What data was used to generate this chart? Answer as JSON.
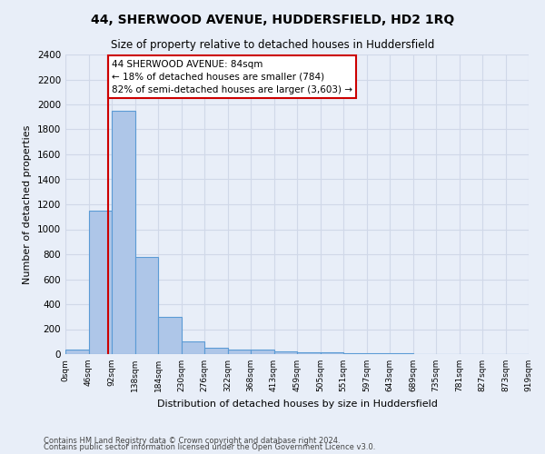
{
  "title": "44, SHERWOOD AVENUE, HUDDERSFIELD, HD2 1RQ",
  "subtitle": "Size of property relative to detached houses in Huddersfield",
  "xlabel": "Distribution of detached houses by size in Huddersfield",
  "ylabel": "Number of detached properties",
  "footer1": "Contains HM Land Registry data © Crown copyright and database right 2024.",
  "footer2": "Contains public sector information licensed under the Open Government Licence v3.0.",
  "bin_labels": [
    "0sqm",
    "46sqm",
    "92sqm",
    "138sqm",
    "184sqm",
    "230sqm",
    "276sqm",
    "322sqm",
    "368sqm",
    "413sqm",
    "459sqm",
    "505sqm",
    "551sqm",
    "597sqm",
    "643sqm",
    "689sqm",
    "735sqm",
    "781sqm",
    "827sqm",
    "873sqm",
    "919sqm"
  ],
  "bar_values": [
    40,
    1150,
    1950,
    775,
    300,
    100,
    50,
    40,
    35,
    25,
    15,
    12,
    8,
    5,
    4,
    3,
    2,
    2,
    1,
    1
  ],
  "bar_color": "#aec6e8",
  "bar_edge_color": "#5b9bd5",
  "grid_color": "#d0d8e8",
  "background_color": "#e8eef8",
  "red_line_color": "#cc0000",
  "annotation_text": "44 SHERWOOD AVENUE: 84sqm\n← 18% of detached houses are smaller (784)\n82% of semi-detached houses are larger (3,603) →",
  "annotation_box_color": "white",
  "annotation_box_edge_color": "#cc0000",
  "ylim": [
    0,
    2400
  ],
  "yticks": [
    0,
    200,
    400,
    600,
    800,
    1000,
    1200,
    1400,
    1600,
    1800,
    2000,
    2200,
    2400
  ],
  "property_sqm": 84,
  "num_bins": 20,
  "bin_width": 46
}
